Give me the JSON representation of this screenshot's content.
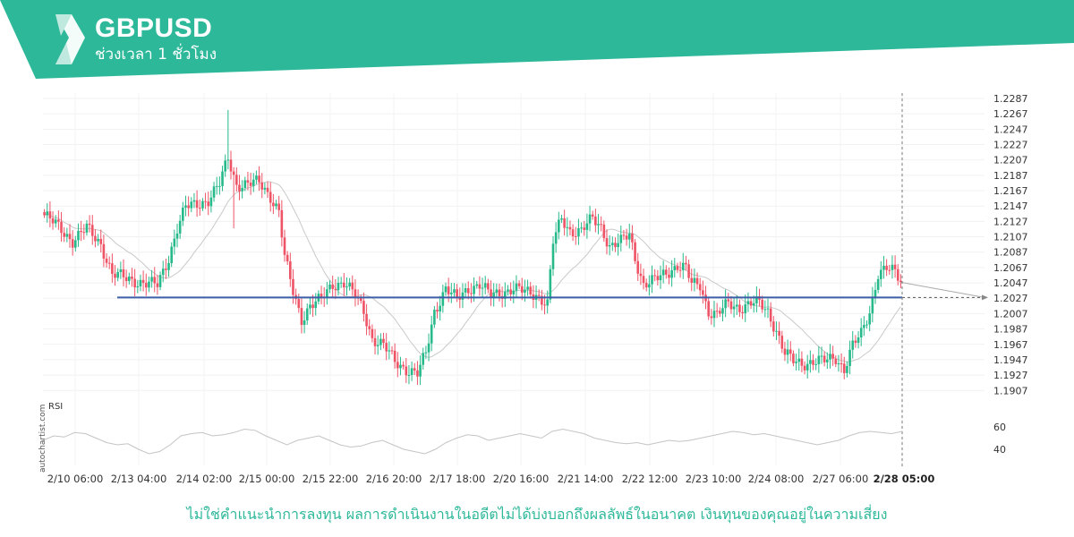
{
  "header": {
    "symbol": "GBPUSD",
    "timeframe": "ช่วงเวลา 1 ชั่วโมง",
    "brand_color": "#2db89a",
    "logo": "autochartist-logo-icon"
  },
  "watermark": "autochartist.com",
  "disclaimer": "ไม่ใช่คำแนะนำการลงทุน ผลการดำเนินงานในอดีตไม่ได้บ่งบอกถึงผลลัพธ์ในอนาคต เงินทุนของคุณอยู่ในความเสี่ยง",
  "chart_data": {
    "type": "candlestick",
    "price_ticks": [
      "1.2287",
      "1.2267",
      "1.2247",
      "1.2227",
      "1.2207",
      "1.2187",
      "1.2167",
      "1.2147",
      "1.2127",
      "1.2107",
      "1.2087",
      "1.2067",
      "1.2047",
      "1.2027",
      "1.2007",
      "1.1987",
      "1.1967",
      "1.1947",
      "1.1927",
      "1.1907"
    ],
    "ylim": [
      1.1898,
      1.2294
    ],
    "x_ticks": [
      "2/10 06:00",
      "2/13 04:00",
      "2/14 02:00",
      "2/15 00:00",
      "2/15 22:00",
      "2/16 20:00",
      "2/17 18:00",
      "2/20 16:00",
      "2/21 14:00",
      "2/22 12:00",
      "2/23 10:00",
      "2/24 08:00",
      "2/27 06:00",
      "2/28 05:00"
    ],
    "current_time_label": "2/28 05:00",
    "support_level": 1.2028,
    "close_path": [
      [
        0,
        1.2135
      ],
      [
        5,
        1.212
      ],
      [
        10,
        1.2102
      ],
      [
        15,
        1.2118
      ],
      [
        20,
        1.2098
      ],
      [
        24,
        1.2058
      ],
      [
        30,
        1.2052
      ],
      [
        36,
        1.2046
      ],
      [
        40,
        1.2044
      ],
      [
        44,
        1.208
      ],
      [
        47,
        1.2118
      ],
      [
        50,
        1.2145
      ],
      [
        54,
        1.215
      ],
      [
        58,
        1.2155
      ],
      [
        62,
        1.2175
      ],
      [
        65,
        1.221
      ],
      [
        68,
        1.2175
      ],
      [
        72,
        1.2175
      ],
      [
        76,
        1.2178
      ],
      [
        80,
        1.216
      ],
      [
        83,
        1.214
      ],
      [
        85,
        1.208
      ],
      [
        88,
        1.2035
      ],
      [
        91,
        1.2
      ],
      [
        94,
        1.2018
      ],
      [
        98,
        1.2025
      ],
      [
        102,
        1.2045
      ],
      [
        106,
        1.2048
      ],
      [
        110,
        1.203
      ],
      [
        113,
        1.201
      ],
      [
        116,
        1.1975
      ],
      [
        120,
        1.1965
      ],
      [
        124,
        1.1945
      ],
      [
        128,
        1.1935
      ],
      [
        132,
        1.1928
      ],
      [
        135,
        1.1955
      ],
      [
        138,
        1.201
      ],
      [
        142,
        1.204
      ],
      [
        146,
        1.2025
      ],
      [
        150,
        1.204
      ],
      [
        154,
        1.2045
      ],
      [
        158,
        1.203
      ],
      [
        162,
        1.2035
      ],
      [
        166,
        1.204
      ],
      [
        170,
        1.2035
      ],
      [
        174,
        1.2032
      ],
      [
        178,
        1.202
      ],
      [
        180,
        1.21
      ],
      [
        183,
        1.213
      ],
      [
        186,
        1.2115
      ],
      [
        190,
        1.2115
      ],
      [
        194,
        1.213
      ],
      [
        197,
        1.212
      ],
      [
        200,
        1.2095
      ],
      [
        204,
        1.21
      ],
      [
        207,
        1.211
      ],
      [
        209,
        1.208
      ],
      [
        212,
        1.2045
      ],
      [
        216,
        1.205
      ],
      [
        220,
        1.206
      ],
      [
        224,
        1.207
      ],
      [
        227,
        1.2065
      ],
      [
        229,
        1.2045
      ],
      [
        232,
        1.2045
      ],
      [
        235,
        1.201
      ],
      [
        238,
        1.2005
      ],
      [
        242,
        1.202
      ],
      [
        246,
        1.2015
      ],
      [
        250,
        1.202
      ],
      [
        253,
        1.202
      ],
      [
        256,
        1.201
      ],
      [
        259,
        1.1985
      ],
      [
        262,
        1.1955
      ],
      [
        265,
        1.1945
      ],
      [
        268,
        1.1942
      ],
      [
        272,
        1.1945
      ],
      [
        276,
        1.1945
      ],
      [
        280,
        1.195
      ],
      [
        283,
        1.1935
      ],
      [
        286,
        1.1965
      ],
      [
        289,
        1.198
      ],
      [
        292,
        1.201
      ],
      [
        295,
        1.206
      ],
      [
        298,
        1.2065
      ],
      [
        301,
        1.206
      ],
      [
        303,
        1.205
      ]
    ],
    "rsi": {
      "label": "RSI",
      "ticks": [
        "60",
        "40"
      ],
      "ylim": [
        32,
        72
      ],
      "values": [
        48,
        52,
        51,
        55,
        54,
        50,
        46,
        44,
        45,
        40,
        36,
        38,
        44,
        52,
        54,
        55,
        52,
        53,
        55,
        58,
        57,
        52,
        48,
        44,
        48,
        50,
        52,
        48,
        44,
        42,
        43,
        46,
        48,
        44,
        40,
        38,
        36,
        40,
        46,
        50,
        53,
        52,
        48,
        50,
        52,
        54,
        52,
        50,
        56,
        58,
        56,
        54,
        50,
        48,
        46,
        45,
        46,
        44,
        46,
        48,
        47,
        48,
        50,
        52,
        54,
        56,
        55,
        53,
        54,
        52,
        50,
        48,
        46,
        44,
        46,
        48,
        52,
        55,
        56,
        55,
        54,
        56
      ]
    }
  }
}
